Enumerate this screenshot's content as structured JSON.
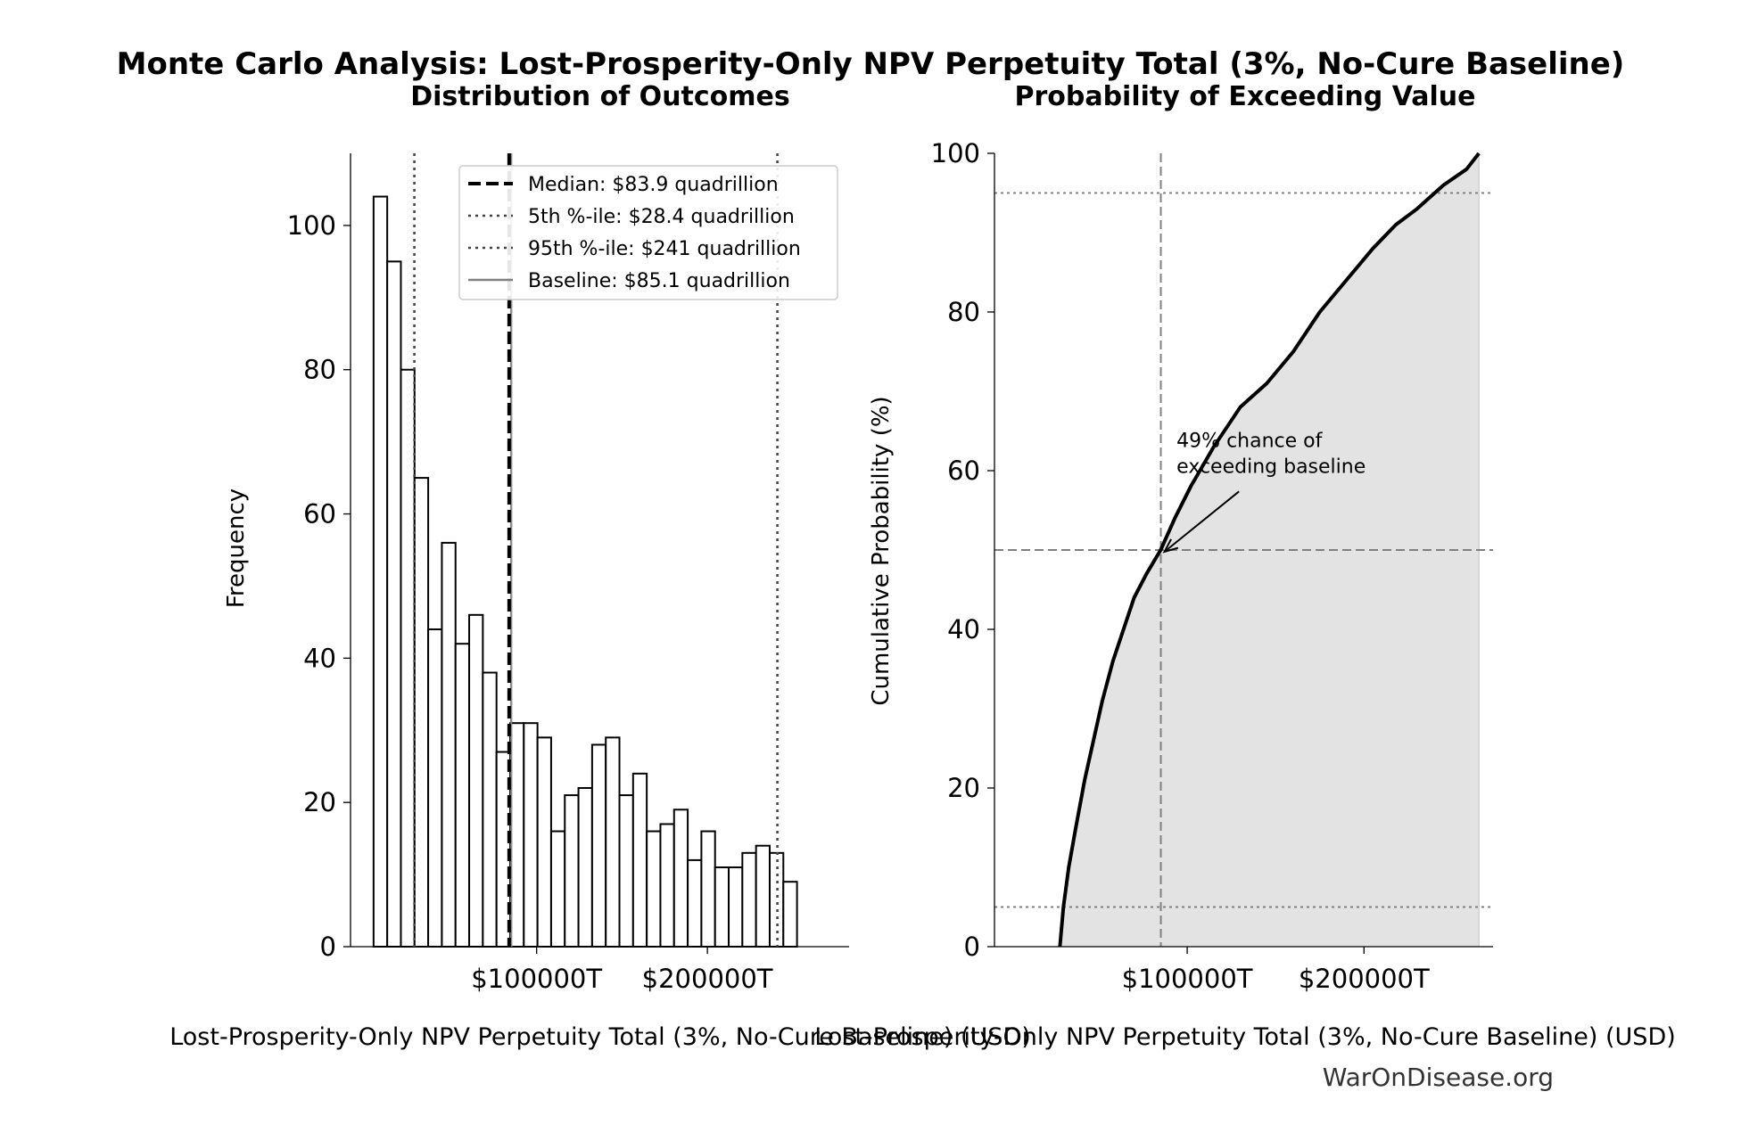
{
  "title": "Monte Carlo Analysis: Lost-Prosperity-Only NPV Perpetuity Total (3%, No-Cure Baseline)",
  "watermark": "WarOnDisease.org",
  "colors": {
    "ink": "#000000",
    "ref_gray": "#808080",
    "fill_gray": "#e3e3e3",
    "dot_gray": "#444444"
  },
  "chart_data": [
    {
      "type": "bar",
      "title": "Distribution of Outcomes",
      "xlabel": "Lost-Prosperity-Only NPV Perpetuity Total (3%, No-Cure Baseline) (USD)",
      "ylabel": "Frequency",
      "x_units": "trillion USD",
      "xlim": [
        -9000,
        283000
      ],
      "ylim": [
        0,
        110
      ],
      "xticks": [
        {
          "value": 100000,
          "label": "$100000T"
        },
        {
          "value": 200000,
          "label": "$200000T"
        }
      ],
      "yticks": [
        0,
        20,
        40,
        60,
        80,
        100
      ],
      "bin_start": 4500,
      "bin_width": 8000,
      "values": [
        104,
        95,
        80,
        65,
        44,
        56,
        42,
        46,
        38,
        27,
        31,
        31,
        29,
        16,
        21,
        22,
        28,
        29,
        21,
        24,
        16,
        17,
        19,
        12,
        16,
        11,
        11,
        13,
        14,
        13,
        9
      ],
      "reference_lines": [
        {
          "name": "Median: $83.9 quadrillion",
          "value": 83900,
          "style": "dashed-thick",
          "color": "#000000"
        },
        {
          "name": "5th %-ile: $28.4 quadrillion",
          "value": 28400,
          "style": "dotted",
          "color": "#444444"
        },
        {
          "name": "95th %-ile: $241 quadrillion",
          "value": 241000,
          "style": "dotted",
          "color": "#444444"
        },
        {
          "name": "Baseline: $85.1 quadrillion",
          "value": 85100,
          "style": "solid",
          "color": "#808080"
        }
      ],
      "legend_position": "top-right"
    },
    {
      "type": "line",
      "title": "Probability of Exceeding Value",
      "xlabel": "Lost-Prosperity-Only NPV Perpetuity Total (3%, No-Cure Baseline) (USD)",
      "ylabel": "Cumulative Probability (%)",
      "x_units": "trillion USD",
      "xlim": [
        -9000,
        273000
      ],
      "ylim": [
        0,
        100
      ],
      "xticks": [
        {
          "value": 100000,
          "label": "$100000T"
        },
        {
          "value": 200000,
          "label": "$200000T"
        }
      ],
      "yticks": [
        0,
        20,
        40,
        60,
        80,
        100
      ],
      "x": [
        28000,
        30000,
        33000,
        37000,
        42000,
        47000,
        52000,
        58000,
        64000,
        70000,
        77000,
        85000,
        93000,
        102000,
        115000,
        130000,
        145000,
        160000,
        175000,
        190000,
        205000,
        218000,
        230000,
        245000,
        258000,
        265000
      ],
      "y": [
        0,
        5,
        10,
        15,
        21,
        26,
        31,
        36,
        40,
        44,
        47,
        50,
        54,
        58,
        63,
        68,
        71,
        75,
        80,
        84,
        88,
        91,
        93,
        96,
        98,
        100
      ],
      "hlines": [
        5,
        50,
        95
      ],
      "vline": 85100,
      "annotation": {
        "text": [
          "49% chance of",
          "exceeding baseline"
        ],
        "point": [
          85100,
          50
        ],
        "text_at": [
          94000,
          63
        ]
      }
    }
  ]
}
